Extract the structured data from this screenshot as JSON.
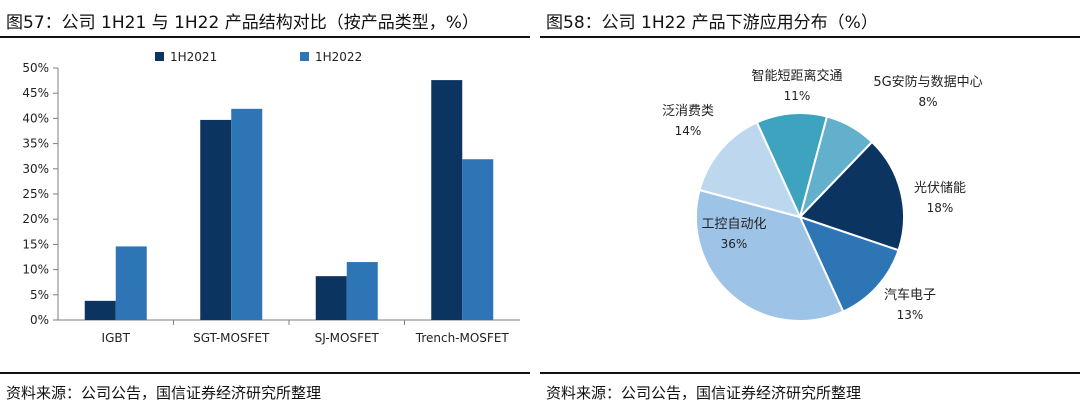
{
  "left": {
    "title": "图57：公司 1H21 与 1H22 产品结构对比（按产品类型，%）",
    "source": "资料来源：公司公告，国信证券经济研究所整理"
  },
  "right": {
    "title": "图58：公司 1H22 产品下游应用分布（%）",
    "source": "资料来源：公司公告，国信证券经济研究所整理"
  },
  "chart_data": [
    {
      "type": "bar",
      "title": "图57：公司 1H21 与 1H22 产品结构对比（按产品类型，%）",
      "categories": [
        "IGBT",
        "SGT-MOSFET",
        "SJ-MOSFET",
        "Trench-MOSFET"
      ],
      "series": [
        {
          "name": "1H2021",
          "values": [
            3.8,
            39.7,
            8.7,
            47.6
          ],
          "color": "#0b3461"
        },
        {
          "name": "1H2022",
          "values": [
            14.6,
            41.9,
            11.5,
            31.9
          ],
          "color": "#2e75b6"
        }
      ],
      "ylim": [
        0,
        50
      ],
      "yticks": [
        0,
        5,
        10,
        15,
        20,
        25,
        30,
        35,
        40,
        45,
        50
      ],
      "ytick_labels": [
        "0%",
        "5%",
        "10%",
        "15%",
        "20%",
        "25%",
        "30%",
        "35%",
        "40%",
        "45%",
        "50%"
      ],
      "legend": "top",
      "grid": false
    },
    {
      "type": "pie",
      "title": "图58：公司 1H22 产品下游应用分布（%）",
      "slices": [
        {
          "label": "智能短距离交通",
          "value": 11,
          "value_label": "11%",
          "color": "#3ea3bf"
        },
        {
          "label": "5G安防与数据中心",
          "value": 8,
          "value_label": "8%",
          "color": "#62b0cc"
        },
        {
          "label": "光伏储能",
          "value": 18,
          "value_label": "18%",
          "color": "#0b3461"
        },
        {
          "label": "汽车电子",
          "value": 13,
          "value_label": "13%",
          "color": "#2e75b6"
        },
        {
          "label": "工控自动化",
          "value": 36,
          "value_label": "36%",
          "color": "#9dc3e6"
        },
        {
          "label": "泛消费类",
          "value": 14,
          "value_label": "14%",
          "color": "#bdd7ee"
        }
      ]
    }
  ]
}
